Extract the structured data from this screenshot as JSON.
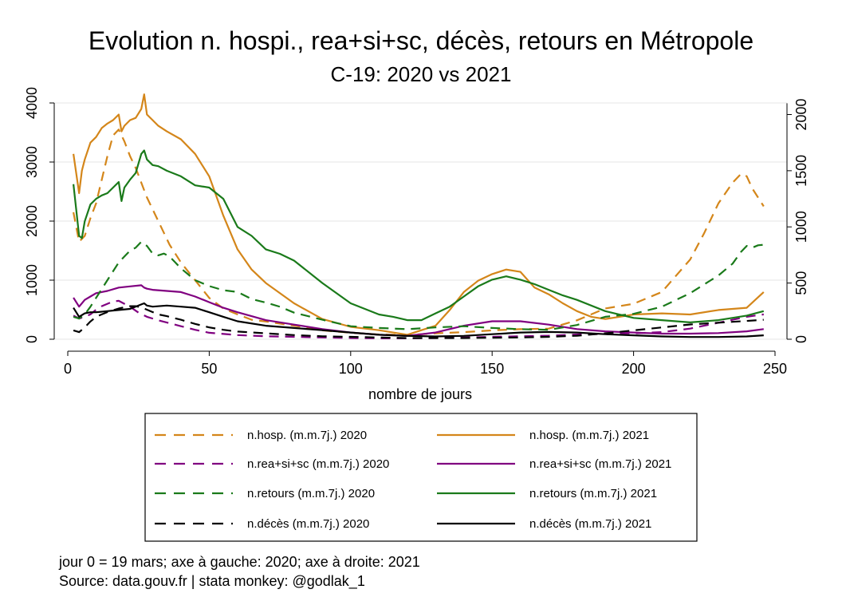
{
  "chart_data": {
    "type": "line",
    "title": "Evolution n. hospi., rea+si+sc, décès, retours en Métropole",
    "subtitle": "C-19: 2020 vs 2021",
    "xlabel": "nombre de jours",
    "xlim": [
      0,
      250
    ],
    "x_ticks": [
      0,
      50,
      100,
      150,
      200,
      250
    ],
    "y_left_lim": [
      0,
      4000
    ],
    "y_left_ticks": [
      0,
      1000,
      2000,
      3000,
      4000
    ],
    "y_left_axis_label": "2020",
    "y_right_lim": [
      0,
      2100
    ],
    "y_right_ticks": [
      0,
      500,
      1000,
      1500,
      2000
    ],
    "y_right_axis_label": "2021",
    "grid": true,
    "legend_position": "bottom",
    "series": [
      {
        "name": "n.hosp. (m.m.7j.) 2020",
        "axis": "left",
        "dash": true,
        "color": "#d4861a",
        "x": [
          2,
          4,
          6,
          8,
          10,
          12,
          14,
          16,
          18,
          20,
          22,
          24,
          26,
          28,
          30,
          32,
          34,
          36,
          38,
          40,
          45,
          50,
          55,
          60,
          65,
          70,
          80,
          90,
          100,
          110,
          120,
          130,
          140,
          150,
          160,
          170,
          180,
          190,
          200,
          210,
          220,
          225,
          230,
          235,
          238,
          240,
          242,
          244,
          246
        ],
        "y": [
          2150,
          1650,
          1750,
          2050,
          2300,
          2700,
          3100,
          3450,
          3550,
          3350,
          3100,
          2900,
          2650,
          2400,
          2200,
          2000,
          1800,
          1600,
          1450,
          1300,
          1000,
          700,
          520,
          420,
          330,
          300,
          230,
          150,
          110,
          80,
          70,
          100,
          120,
          150,
          170,
          180,
          320,
          520,
          600,
          800,
          1350,
          1800,
          2300,
          2650,
          2800,
          2760,
          2550,
          2400,
          2250
        ]
      },
      {
        "name": "n.hosp. (m.m.7j.) 2021",
        "axis": "right",
        "dash": false,
        "color": "#d4861a",
        "x": [
          2,
          4,
          5,
          6,
          8,
          10,
          12,
          14,
          16,
          18,
          19,
          20,
          22,
          24,
          26,
          27,
          28,
          30,
          32,
          35,
          40,
          45,
          50,
          55,
          60,
          65,
          70,
          80,
          90,
          100,
          110,
          115,
          120,
          125,
          130,
          135,
          140,
          145,
          150,
          155,
          160,
          165,
          170,
          175,
          180,
          185,
          190,
          195,
          200,
          210,
          220,
          230,
          240,
          243,
          246
        ],
        "y": [
          1650,
          1300,
          1500,
          1600,
          1750,
          1800,
          1880,
          1920,
          1950,
          2000,
          1850,
          1900,
          1950,
          1970,
          2050,
          2180,
          2000,
          1950,
          1900,
          1850,
          1780,
          1650,
          1450,
          1100,
          800,
          620,
          500,
          320,
          180,
          110,
          80,
          60,
          40,
          80,
          120,
          260,
          420,
          520,
          580,
          620,
          600,
          460,
          400,
          320,
          250,
          200,
          180,
          200,
          220,
          230,
          220,
          260,
          280,
          350,
          420
        ]
      },
      {
        "name": "n.rea+si+sc (m.m.7j.) 2020",
        "axis": "left",
        "dash": true,
        "color": "#800080",
        "x": [
          2,
          4,
          6,
          8,
          10,
          12,
          14,
          16,
          18,
          20,
          22,
          25,
          28,
          32,
          36,
          40,
          45,
          50,
          60,
          70,
          80,
          90,
          100,
          110,
          120,
          130,
          140,
          150,
          160,
          170,
          180,
          190,
          200,
          210,
          220,
          230,
          240,
          246
        ],
        "y": [
          400,
          350,
          380,
          420,
          500,
          560,
          600,
          640,
          650,
          600,
          550,
          450,
          380,
          320,
          270,
          220,
          160,
          110,
          70,
          50,
          40,
          30,
          20,
          15,
          15,
          20,
          30,
          40,
          50,
          60,
          80,
          90,
          100,
          120,
          180,
          280,
          380,
          420
        ]
      },
      {
        "name": "n.rea+si+sc (m.m.7j.) 2021",
        "axis": "right",
        "dash": false,
        "color": "#800080",
        "x": [
          2,
          4,
          6,
          8,
          10,
          14,
          18,
          22,
          26,
          27,
          28,
          30,
          35,
          40,
          45,
          50,
          55,
          60,
          70,
          80,
          90,
          100,
          110,
          120,
          130,
          140,
          150,
          160,
          170,
          180,
          190,
          200,
          210,
          220,
          230,
          240,
          246
        ],
        "y": [
          370,
          290,
          350,
          380,
          410,
          430,
          460,
          470,
          480,
          460,
          450,
          440,
          430,
          420,
          380,
          330,
          280,
          240,
          170,
          130,
          90,
          60,
          40,
          30,
          60,
          120,
          160,
          160,
          130,
          90,
          70,
          60,
          50,
          50,
          55,
          70,
          90
        ]
      },
      {
        "name": "n.retours (m.m.7j.) 2020",
        "axis": "left",
        "dash": true,
        "color": "#1a7a1a",
        "x": [
          2,
          4,
          6,
          8,
          10,
          12,
          14,
          16,
          18,
          20,
          22,
          24,
          26,
          28,
          30,
          32,
          34,
          36,
          38,
          40,
          45,
          50,
          55,
          60,
          65,
          70,
          75,
          80,
          90,
          100,
          110,
          120,
          130,
          140,
          150,
          160,
          170,
          180,
          190,
          200,
          210,
          220,
          230,
          235,
          238,
          240,
          242,
          244,
          246
        ],
        "y": [
          380,
          350,
          420,
          550,
          700,
          850,
          1000,
          1150,
          1300,
          1400,
          1500,
          1550,
          1650,
          1580,
          1450,
          1420,
          1450,
          1400,
          1300,
          1200,
          1000,
          900,
          830,
          800,
          680,
          620,
          550,
          450,
          330,
          220,
          190,
          170,
          200,
          220,
          190,
          170,
          160,
          240,
          380,
          430,
          550,
          780,
          1080,
          1280,
          1480,
          1580,
          1550,
          1590,
          1600
        ]
      },
      {
        "name": "n.retours (m.m.7j.) 2021",
        "axis": "right",
        "dash": false,
        "color": "#1a7a1a",
        "x": [
          2,
          4,
          5,
          6,
          8,
          10,
          12,
          14,
          16,
          18,
          19,
          20,
          22,
          24,
          26,
          27,
          28,
          30,
          32,
          35,
          40,
          45,
          50,
          55,
          60,
          65,
          70,
          75,
          80,
          90,
          100,
          110,
          115,
          120,
          125,
          130,
          135,
          140,
          145,
          150,
          155,
          160,
          165,
          170,
          175,
          180,
          190,
          200,
          210,
          220,
          230,
          240,
          243,
          246
        ],
        "y": [
          1380,
          920,
          900,
          1050,
          1200,
          1250,
          1280,
          1300,
          1350,
          1400,
          1230,
          1350,
          1420,
          1480,
          1650,
          1680,
          1600,
          1550,
          1540,
          1500,
          1450,
          1370,
          1350,
          1250,
          1000,
          920,
          800,
          760,
          700,
          500,
          320,
          220,
          200,
          170,
          170,
          230,
          290,
          380,
          470,
          530,
          560,
          530,
          490,
          440,
          390,
          350,
          250,
          190,
          170,
          150,
          170,
          210,
          230,
          250
        ]
      },
      {
        "name": "n.décès (m.m.7j.) 2020",
        "axis": "left",
        "dash": true,
        "color": "#000000",
        "x": [
          2,
          4,
          6,
          8,
          10,
          12,
          14,
          16,
          18,
          20,
          22,
          24,
          26,
          28,
          30,
          32,
          35,
          40,
          45,
          50,
          55,
          60,
          70,
          80,
          90,
          100,
          110,
          120,
          130,
          140,
          150,
          160,
          170,
          180,
          190,
          200,
          210,
          220,
          230,
          240,
          246
        ],
        "y": [
          150,
          120,
          200,
          300,
          380,
          420,
          460,
          490,
          520,
          540,
          560,
          560,
          540,
          500,
          460,
          420,
          390,
          330,
          260,
          200,
          160,
          130,
          100,
          70,
          50,
          40,
          30,
          20,
          20,
          20,
          25,
          30,
          40,
          60,
          100,
          150,
          200,
          250,
          280,
          310,
          330
        ]
      },
      {
        "name": "n.décès (m.m.7j.) 2021",
        "axis": "right",
        "dash": false,
        "color": "#000000",
        "x": [
          2,
          4,
          6,
          8,
          10,
          14,
          18,
          22,
          26,
          27,
          28,
          30,
          35,
          40,
          45,
          50,
          55,
          60,
          70,
          80,
          90,
          100,
          110,
          120,
          130,
          140,
          150,
          160,
          170,
          180,
          190,
          200,
          210,
          220,
          230,
          240,
          246
        ],
        "y": [
          280,
          200,
          230,
          240,
          240,
          250,
          260,
          270,
          310,
          320,
          300,
          290,
          300,
          290,
          280,
          240,
          200,
          160,
          120,
          100,
          80,
          60,
          40,
          30,
          25,
          30,
          45,
          60,
          65,
          60,
          45,
          35,
          25,
          20,
          20,
          25,
          35
        ]
      }
    ],
    "footnote_1": "jour 0 = 19 mars; axe à gauche: 2020; axe à droite: 2021",
    "footnote_2": "Source: data.gouv.fr | stata monkey: @godlak_1"
  }
}
